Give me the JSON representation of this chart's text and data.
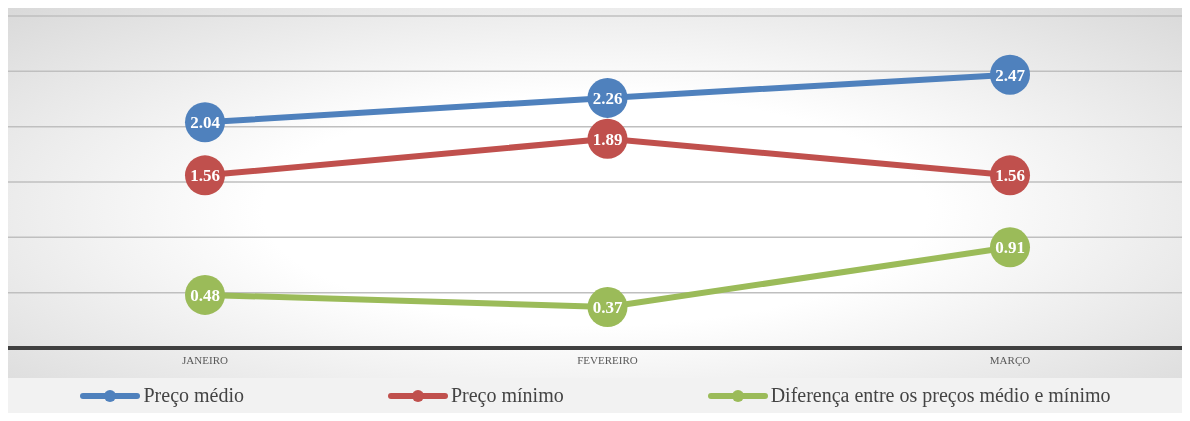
{
  "chart_data": {
    "type": "line",
    "categories": [
      "JANEIRO",
      "FEVEREIRO",
      "MARÇO"
    ],
    "series": [
      {
        "name": "Preço médio",
        "color": "#4f81bd",
        "values": [
          2.04,
          2.26,
          2.47
        ]
      },
      {
        "name": "Preço mínimo",
        "color": "#c0504d",
        "values": [
          1.56,
          1.89,
          1.56
        ]
      },
      {
        "name": "Diferença entre os preços médio e mínimo",
        "color": "#9bbb59",
        "values": [
          0.48,
          0.37,
          0.91
        ]
      }
    ],
    "ylim": [
      0,
      3
    ],
    "tick_labels": "x",
    "grid": "y",
    "legend": "bottom",
    "marker": "circle",
    "line_style": "solid",
    "data_labels": true
  }
}
